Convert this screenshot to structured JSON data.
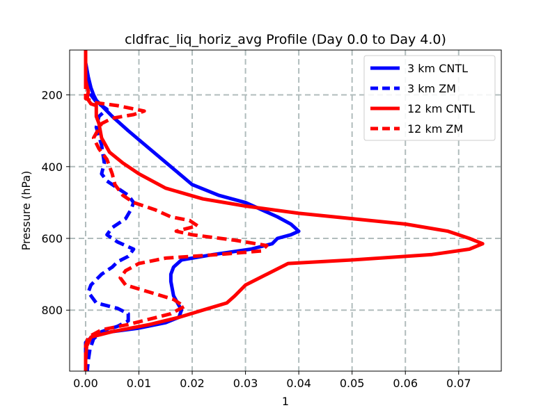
{
  "chart_data": {
    "type": "line",
    "title": "cldfrac_liq_horiz_avg Profile (Day 0.0 to Day 4.0)",
    "xlabel": "1",
    "ylabel": "Pressure (hPa)",
    "xlim": [
      -0.003,
      0.078
    ],
    "ylim": [
      970,
      75
    ],
    "y_inverted": true,
    "grid": true,
    "legend_position": "top-right",
    "x_ticks": [
      0.0,
      0.01,
      0.02,
      0.03,
      0.04,
      0.05,
      0.06,
      0.07
    ],
    "x_tick_labels": [
      "0.00",
      "0.01",
      "0.02",
      "0.03",
      "0.04",
      "0.05",
      "0.06",
      "0.07"
    ],
    "y_ticks": [
      200,
      400,
      600,
      800
    ],
    "y_tick_labels": [
      "200",
      "400",
      "600",
      "800"
    ],
    "series": [
      {
        "name": "3 km CNTL",
        "color": "#0000ff",
        "dash": "solid",
        "points": [
          [
            0.0,
            75
          ],
          [
            0.0,
            110
          ],
          [
            0.0005,
            150
          ],
          [
            0.001,
            180
          ],
          [
            0.0015,
            200
          ],
          [
            0.002,
            215
          ],
          [
            0.003,
            230
          ],
          [
            0.005,
            260
          ],
          [
            0.008,
            300
          ],
          [
            0.012,
            350
          ],
          [
            0.016,
            400
          ],
          [
            0.02,
            450
          ],
          [
            0.025,
            480
          ],
          [
            0.03,
            500
          ],
          [
            0.033,
            520
          ],
          [
            0.036,
            540
          ],
          [
            0.0385,
            560
          ],
          [
            0.04,
            580
          ],
          [
            0.0385,
            590
          ],
          [
            0.036,
            600
          ],
          [
            0.035,
            615
          ],
          [
            0.031,
            630
          ],
          [
            0.024,
            645
          ],
          [
            0.018,
            660
          ],
          [
            0.0165,
            680
          ],
          [
            0.016,
            700
          ],
          [
            0.016,
            720
          ],
          [
            0.0165,
            760
          ],
          [
            0.018,
            800
          ],
          [
            0.0175,
            820
          ],
          [
            0.015,
            835
          ],
          [
            0.01,
            850
          ],
          [
            0.005,
            860
          ],
          [
            0.0015,
            870
          ],
          [
            0.0,
            890
          ],
          [
            0.0,
            930
          ],
          [
            0.0,
            970
          ]
        ]
      },
      {
        "name": "3 km ZM",
        "color": "#0000ff",
        "dash": "dashed",
        "points": [
          [
            0.0,
            75
          ],
          [
            0.0,
            120
          ],
          [
            0.0005,
            170
          ],
          [
            0.001,
            200
          ],
          [
            0.002,
            220
          ],
          [
            0.004,
            240
          ],
          [
            0.0025,
            260
          ],
          [
            0.002,
            290
          ],
          [
            0.003,
            340
          ],
          [
            0.0035,
            390
          ],
          [
            0.003,
            420
          ],
          [
            0.004,
            440
          ],
          [
            0.006,
            460
          ],
          [
            0.008,
            480
          ],
          [
            0.009,
            500
          ],
          [
            0.0085,
            520
          ],
          [
            0.0075,
            545
          ],
          [
            0.005,
            570
          ],
          [
            0.004,
            590
          ],
          [
            0.006,
            610
          ],
          [
            0.009,
            630
          ],
          [
            0.008,
            650
          ],
          [
            0.006,
            665
          ],
          [
            0.005,
            680
          ],
          [
            0.003,
            700
          ],
          [
            0.001,
            730
          ],
          [
            0.0005,
            750
          ],
          [
            0.002,
            780
          ],
          [
            0.006,
            795
          ],
          [
            0.008,
            810
          ],
          [
            0.008,
            830
          ],
          [
            0.006,
            845
          ],
          [
            0.003,
            860
          ],
          [
            0.0015,
            880
          ],
          [
            0.0008,
            910
          ],
          [
            0.0005,
            940
          ],
          [
            0.0003,
            970
          ]
        ]
      },
      {
        "name": "12 km CNTL",
        "color": "#ff0000",
        "dash": "solid",
        "points": [
          [
            0.0,
            75
          ],
          [
            0.0,
            110
          ],
          [
            0.0,
            160
          ],
          [
            0.0005,
            190
          ],
          [
            0.0003,
            210
          ],
          [
            0.001,
            225
          ],
          [
            0.002,
            230
          ],
          [
            0.002,
            260
          ],
          [
            0.0025,
            280
          ],
          [
            0.003,
            320
          ],
          [
            0.0045,
            360
          ],
          [
            0.007,
            390
          ],
          [
            0.01,
            420
          ],
          [
            0.015,
            460
          ],
          [
            0.022,
            490
          ],
          [
            0.03,
            510
          ],
          [
            0.04,
            530
          ],
          [
            0.05,
            545
          ],
          [
            0.06,
            560
          ],
          [
            0.068,
            580
          ],
          [
            0.072,
            600
          ],
          [
            0.0745,
            615
          ],
          [
            0.072,
            630
          ],
          [
            0.065,
            645
          ],
          [
            0.05,
            660
          ],
          [
            0.038,
            670
          ],
          [
            0.036,
            685
          ],
          [
            0.034,
            700
          ],
          [
            0.03,
            730
          ],
          [
            0.028,
            760
          ],
          [
            0.0265,
            780
          ],
          [
            0.022,
            800
          ],
          [
            0.0175,
            820
          ],
          [
            0.012,
            840
          ],
          [
            0.005,
            860
          ],
          [
            0.001,
            875
          ],
          [
            0.0002,
            900
          ],
          [
            0.0,
            940
          ],
          [
            0.0,
            970
          ]
        ]
      },
      {
        "name": "12 km ZM",
        "color": "#ff0000",
        "dash": "dashed",
        "points": [
          [
            0.0,
            75
          ],
          [
            0.0,
            130
          ],
          [
            0.0,
            190
          ],
          [
            0.0,
            210
          ],
          [
            0.002,
            222
          ],
          [
            0.006,
            230
          ],
          [
            0.011,
            245
          ],
          [
            0.009,
            255
          ],
          [
            0.005,
            265
          ],
          [
            0.003,
            280
          ],
          [
            0.0015,
            320
          ],
          [
            0.0025,
            350
          ],
          [
            0.004,
            380
          ],
          [
            0.005,
            420
          ],
          [
            0.0055,
            450
          ],
          [
            0.007,
            480
          ],
          [
            0.009,
            500
          ],
          [
            0.013,
            520
          ],
          [
            0.016,
            540
          ],
          [
            0.0195,
            550
          ],
          [
            0.021,
            565
          ],
          [
            0.017,
            580
          ],
          [
            0.02,
            590
          ],
          [
            0.028,
            605
          ],
          [
            0.034,
            620
          ],
          [
            0.033,
            635
          ],
          [
            0.025,
            645
          ],
          [
            0.015,
            655
          ],
          [
            0.01,
            670
          ],
          [
            0.0075,
            690
          ],
          [
            0.0065,
            710
          ],
          [
            0.0075,
            730
          ],
          [
            0.012,
            750
          ],
          [
            0.0165,
            770
          ],
          [
            0.0185,
            790
          ],
          [
            0.016,
            810
          ],
          [
            0.012,
            825
          ],
          [
            0.008,
            840
          ],
          [
            0.003,
            855
          ],
          [
            0.0005,
            875
          ],
          [
            0.0,
            900
          ],
          [
            0.0,
            940
          ],
          [
            0.0,
            970
          ]
        ]
      }
    ]
  }
}
